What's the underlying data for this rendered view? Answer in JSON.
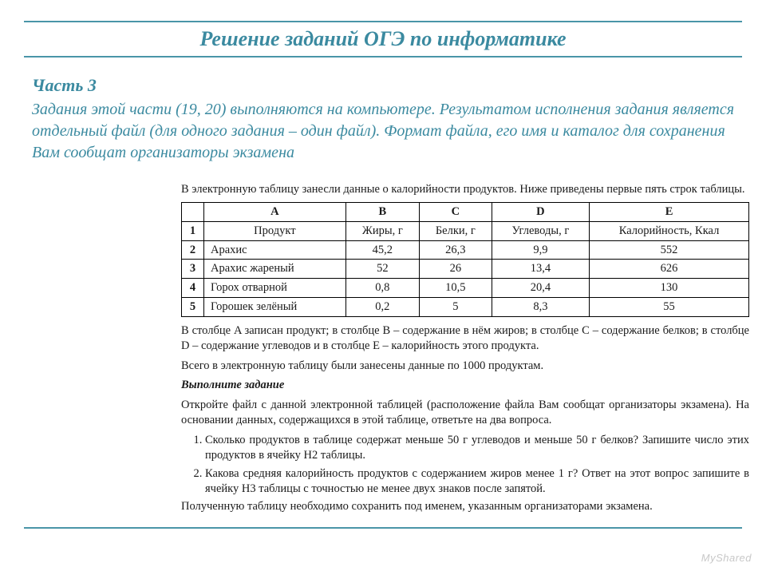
{
  "colors": {
    "accent": "#3b8aa0",
    "rule": "#4a95a8",
    "text": "#1a1a1a",
    "background": "#ffffff",
    "watermark": "#c8c8c8",
    "table_border": "#000000"
  },
  "fonts": {
    "title_family": "Georgia",
    "body_family": "Times New Roman",
    "title_size_pt": 26,
    "intro_size_pt": 20,
    "doc_size_pt": 14.5
  },
  "title": "Решение заданий ОГЭ по информатике",
  "intro": {
    "part": "Часть 3",
    "text": "Задания этой части (19, 20) выполняются на компьютере. Результатом исполнения задания является отдельный файл (для одного задания – один файл). Формат файла, его имя и каталог для сохранения Вам сообщат организаторы экзамена"
  },
  "doc": {
    "lead": "В электронную таблицу занесли данные о калорийности продуктов. Ниже приведены первые пять строк таблицы.",
    "table": {
      "col_letters": [
        "",
        "A",
        "B",
        "C",
        "D",
        "E"
      ],
      "header_row": [
        "1",
        "Продукт",
        "Жиры, г",
        "Белки, г",
        "Углеводы, г",
        "Калорийность, Ккал"
      ],
      "rows": [
        [
          "2",
          "Арахис",
          "45,2",
          "26,3",
          "9,9",
          "552"
        ],
        [
          "3",
          "Арахис жареный",
          "52",
          "26",
          "13,4",
          "626"
        ],
        [
          "4",
          "Горох отварной",
          "0,8",
          "10,5",
          "20,4",
          "130"
        ],
        [
          "5",
          "Горошек зелёный",
          "0,2",
          "5",
          "8,3",
          "55"
        ]
      ],
      "col_widths_pct": [
        5,
        28,
        14,
        14,
        17,
        22
      ]
    },
    "explain": "В столбце A записан продукт; в столбце B – содержание в нём жиров; в столбце C – содержание белков; в столбце D – содержание углеводов и в столбце E – калорийность этого продукта.",
    "total": "Всего в электронную таблицу были занесены данные по 1000 продуктам.",
    "task_header": "Выполните задание",
    "task_open": "Откройте файл с данной электронной таблицей (расположение файла Вам сообщат организаторы экзамена). На основании данных, содержащихся в этой таблице, ответьте на два вопроса.",
    "questions": [
      "Сколько продуктов в таблице содержат меньше 50 г углеводов и меньше 50 г белков? Запишите число этих продуктов в ячейку H2 таблицы.",
      "Какова средняя калорийность продуктов с содержанием жиров менее 1 г? Ответ на этот вопрос запишите в ячейку H3 таблицы с точностью не менее двух знаков после запятой."
    ],
    "closing": "Полученную таблицу необходимо сохранить под именем, указанным организаторами экзамена."
  },
  "watermark": "MyShared"
}
